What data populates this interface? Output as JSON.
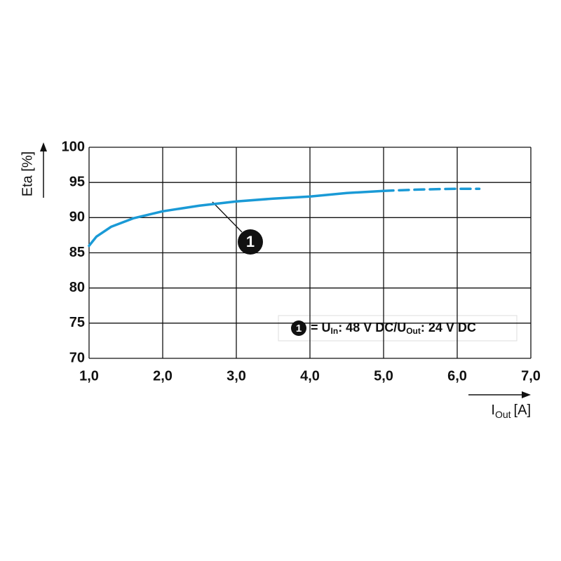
{
  "chart_data": {
    "type": "line",
    "ylabel": "Eta [%]",
    "xlabel": {
      "main": "I",
      "sub": "Out",
      "unit": "[A]"
    },
    "x": [
      1.0,
      1.1,
      1.3,
      1.6,
      2.0,
      2.5,
      3.0,
      3.5,
      4.0,
      4.5,
      5.0,
      5.5,
      6.0,
      6.3
    ],
    "series": [
      {
        "color": "#1a9ad6",
        "dash": false,
        "values": [
          86,
          87.3,
          88.7,
          89.9,
          90.9,
          91.7,
          92.3,
          92.7,
          93.0,
          93.5,
          93.8,
          null,
          null,
          null
        ]
      },
      {
        "color": "#1a9ad6",
        "dash": true,
        "values": [
          null,
          null,
          null,
          null,
          null,
          null,
          null,
          null,
          null,
          null,
          93.8,
          94.0,
          94.1,
          94.1
        ]
      }
    ],
    "xlim": [
      1,
      7
    ],
    "xticks": [
      {
        "value": 1,
        "label": "1,0"
      },
      {
        "value": 2,
        "label": "2,0"
      },
      {
        "value": 3,
        "label": "3,0"
      },
      {
        "value": 4,
        "label": "4,0"
      },
      {
        "value": 5,
        "label": "5,0"
      },
      {
        "value": 6,
        "label": "6,0"
      },
      {
        "value": 7,
        "label": "7,0"
      }
    ],
    "ylim": [
      70,
      100
    ],
    "yticks": [
      70,
      75,
      80,
      85,
      90,
      95,
      100
    ],
    "grid": true,
    "callout": "1",
    "annotation": {
      "marker": "1",
      "parts": [
        {
          "text": "= U"
        },
        {
          "sub": "In"
        },
        {
          "text": ": 48 V DC/U"
        },
        {
          "sub": "Out"
        },
        {
          "text": ": 24 V DC"
        }
      ]
    }
  }
}
